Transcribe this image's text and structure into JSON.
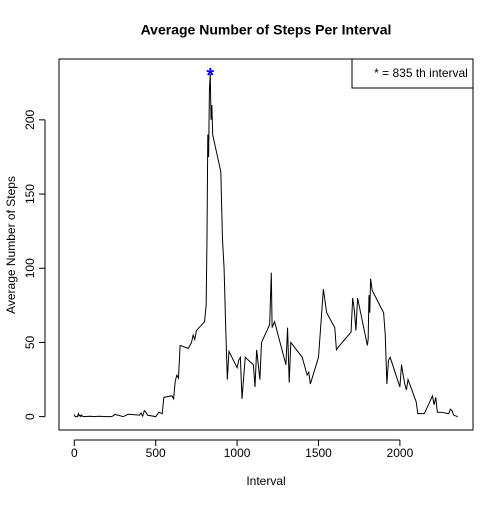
{
  "chart_data": {
    "type": "line",
    "title": "Average Number of Steps Per Interval",
    "xlabel": "Interval",
    "ylabel": "Average Number of Steps",
    "legend_text": "* = 835 th interval",
    "peak": {
      "x": 835,
      "y": 231,
      "label": "*",
      "color": "#0000ff"
    },
    "xlim": [
      -94,
      2449
    ],
    "ylim": [
      -9,
      241
    ],
    "xticks": [
      0,
      500,
      1000,
      1500,
      2000
    ],
    "yticks": [
      0,
      50,
      100,
      150,
      200
    ],
    "series": [
      {
        "name": "steps",
        "color": "#000000",
        "x": [
          0,
          5,
          10,
          15,
          20,
          25,
          30,
          35,
          40,
          45,
          50,
          55,
          100,
          120,
          150,
          200,
          230,
          250,
          300,
          330,
          400,
          410,
          420,
          430,
          440,
          450,
          500,
          520,
          540,
          550,
          600,
          610,
          620,
          630,
          640,
          650,
          700,
          720,
          730,
          740,
          750,
          800,
          810,
          815,
          820,
          825,
          830,
          835,
          840,
          845,
          850,
          900,
          910,
          920,
          930,
          940,
          950,
          1000,
          1010,
          1020,
          1030,
          1050,
          1100,
          1110,
          1120,
          1140,
          1150,
          1200,
          1210,
          1215,
          1230,
          1300,
          1310,
          1320,
          1330,
          1400,
          1430,
          1440,
          1450,
          1500,
          1530,
          1540,
          1550,
          1600,
          1610,
          1630,
          1700,
          1710,
          1720,
          1730,
          1740,
          1800,
          1805,
          1810,
          1815,
          1820,
          1830,
          1900,
          1910,
          1920,
          1930,
          1940,
          2000,
          2010,
          2020,
          2030,
          2040,
          2050,
          2100,
          2110,
          2150,
          2200,
          2210,
          2220,
          2230,
          2250,
          2300,
          2310,
          2320,
          2330,
          2355
        ],
        "values": [
          1.5,
          0,
          0,
          0,
          0,
          2,
          0.5,
          1,
          0,
          1,
          0.3,
          0,
          0.3,
          0,
          0.3,
          0,
          0,
          1.5,
          0,
          1.6,
          1,
          2.5,
          0.3,
          4,
          3,
          1,
          0,
          3,
          2,
          13,
          14,
          12,
          24,
          28,
          26,
          48,
          46,
          50,
          55,
          52,
          58,
          64,
          75,
          120,
          190,
          175,
          220,
          231,
          200,
          210,
          190,
          165,
          120,
          100,
          60,
          25,
          44,
          33,
          38,
          40,
          12,
          40,
          35,
          20,
          45,
          25,
          50,
          62,
          97,
          60,
          64,
          35,
          60,
          23,
          50,
          40,
          28,
          30,
          22,
          40,
          86,
          78,
          70,
          60,
          45,
          48,
          57,
          80,
          72,
          58,
          80,
          48,
          52,
          82,
          70,
          93,
          85,
          70,
          55,
          22,
          38,
          40,
          20,
          35,
          28,
          22,
          18,
          25,
          10,
          2,
          2,
          14,
          8,
          13,
          3,
          3,
          2,
          5,
          4,
          1,
          0
        ]
      }
    ]
  }
}
